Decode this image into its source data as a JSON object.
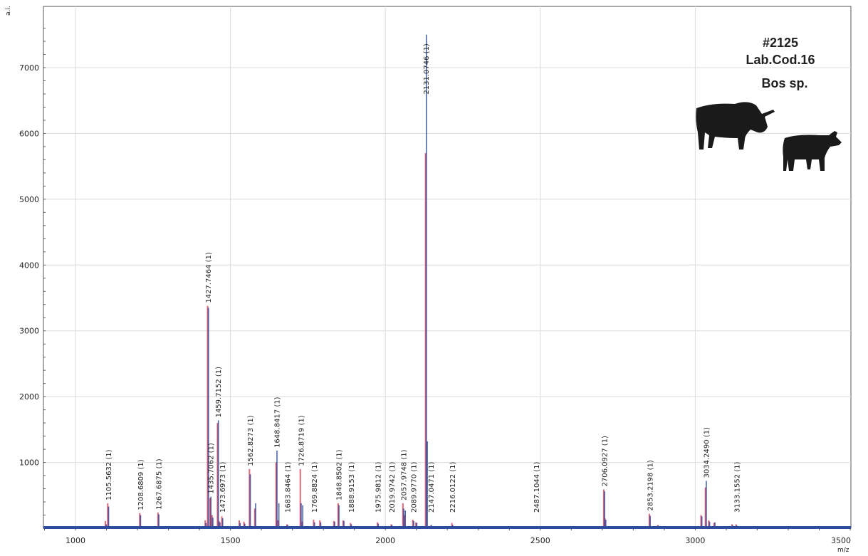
{
  "chart_data": {
    "type": "line",
    "title": "",
    "xlabel": "m/z",
    "ylabel": "a.i.",
    "xlim": [
      900,
      3500
    ],
    "ylim": [
      0,
      7800
    ],
    "x_ticks": [
      1000,
      1500,
      2000,
      2500,
      3000,
      3500
    ],
    "y_ticks": [
      1000,
      2000,
      3000,
      4000,
      5000,
      6000,
      7000
    ],
    "grid": true,
    "annotations": [
      "#2125",
      "Lab.Cod.16",
      "Bos sp."
    ],
    "icons": [
      "cow-silhouette-icon",
      "calf-silhouette-icon"
    ],
    "colors": {
      "blue": "#2b4f9a",
      "red": "#e06a78",
      "purple": "#7a3d8c"
    },
    "labeled_peaks": [
      {
        "mz": 1105.5632,
        "label": "1105.5632 (1)",
        "red": 380,
        "blue": 330
      },
      {
        "mz": 1208.6809,
        "label": "1208.6809 (1)",
        "red": 230,
        "blue": 200
      },
      {
        "mz": 1267.6875,
        "label": "1267.6875 (1)",
        "red": 240,
        "blue": 210
      },
      {
        "mz": 1427.7464,
        "label": "1427.7464 (1)",
        "red": 3380,
        "blue": 3350
      },
      {
        "mz": 1435.7062,
        "label": "1435.7062 (1)",
        "red": 460,
        "blue": 480
      },
      {
        "mz": 1459.7152,
        "label": "1459.7152 (1)",
        "red": 1600,
        "blue": 1640
      },
      {
        "mz": 1473.6973,
        "label": "1473.6973 (1)",
        "red": 180,
        "blue": 150
      },
      {
        "mz": 1562.8273,
        "label": "1562.8273 (1)",
        "red": 900,
        "blue": 820
      },
      {
        "mz": 1648.8417,
        "label": "1648.8417 (1)",
        "red": 1000,
        "blue": 1180
      },
      {
        "mz": 1683.8464,
        "label": "1683.8464 (1)",
        "red": 60,
        "blue": 50
      },
      {
        "mz": 1726.8719,
        "label": "1726.8719 (1)",
        "red": 900,
        "blue": 380
      },
      {
        "mz": 1769.8824,
        "label": "1769.8824 (1)",
        "red": 130,
        "blue": 90
      },
      {
        "mz": 1848.8502,
        "label": "1848.8502 (1)",
        "red": 380,
        "blue": 350
      },
      {
        "mz": 1888.9153,
        "label": "1888.9153 (1)",
        "red": 80,
        "blue": 60
      },
      {
        "mz": 1975.9812,
        "label": "1975.9812 (1)",
        "red": 90,
        "blue": 70
      },
      {
        "mz": 2019.9742,
        "label": "2019.9742 (1)",
        "red": 60,
        "blue": 50
      },
      {
        "mz": 2057.9748,
        "label": "2057.9748 (1)",
        "red": 380,
        "blue": 300
      },
      {
        "mz": 2089.977,
        "label": "2089.9770 (1)",
        "red": 130,
        "blue": 110
      },
      {
        "mz": 2131.0746,
        "label": "2131.0746 (1)",
        "red": 5700,
        "blue": 7500
      },
      {
        "mz": 2147.0471,
        "label": "2147.0471 (1)",
        "red": 40,
        "blue": 50
      },
      {
        "mz": 2216.0122,
        "label": "2216.0122 (1)",
        "red": 80,
        "blue": 50
      },
      {
        "mz": 2487.1044,
        "label": "2487.1044 (1)",
        "red": 30,
        "blue": 30
      },
      {
        "mz": 2706.0927,
        "label": "2706.0927 (1)",
        "red": 590,
        "blue": 560
      },
      {
        "mz": 2853.2198,
        "label": "2853.2198 (1)",
        "red": 220,
        "blue": 190
      },
      {
        "mz": 3034.249,
        "label": "3034.2490 (1)",
        "red": 620,
        "blue": 720
      },
      {
        "mz": 3133.1552,
        "label": "3133.1552 (1)",
        "red": 60,
        "blue": 40
      }
    ],
    "minor_peaks": [
      {
        "mz": 1098,
        "red": 110,
        "blue": 60
      },
      {
        "mz": 1420,
        "red": 120,
        "blue": 80
      },
      {
        "mz": 1442,
        "red": 200,
        "blue": 160
      },
      {
        "mz": 1465,
        "red": 110,
        "blue": 90
      },
      {
        "mz": 1530,
        "red": 120,
        "blue": 80
      },
      {
        "mz": 1545,
        "red": 100,
        "blue": 70
      },
      {
        "mz": 1580,
        "red": 300,
        "blue": 380
      },
      {
        "mz": 1655,
        "red": 120,
        "blue": 380
      },
      {
        "mz": 1732,
        "red": 100,
        "blue": 350
      },
      {
        "mz": 1790,
        "red": 120,
        "blue": 90
      },
      {
        "mz": 1835,
        "red": 110,
        "blue": 100
      },
      {
        "mz": 1865,
        "red": 120,
        "blue": 110
      },
      {
        "mz": 2063,
        "red": 200,
        "blue": 270
      },
      {
        "mz": 2100,
        "red": 90,
        "blue": 80
      },
      {
        "mz": 2134,
        "red": 0,
        "blue": 1320
      },
      {
        "mz": 2710,
        "red": 150,
        "blue": 130
      },
      {
        "mz": 2880,
        "red": 50,
        "blue": 40
      },
      {
        "mz": 3020,
        "red": 200,
        "blue": 180
      },
      {
        "mz": 3045,
        "red": 120,
        "blue": 100
      },
      {
        "mz": 3062,
        "red": 80,
        "blue": 90
      },
      {
        "mz": 3120,
        "red": 60,
        "blue": 40
      }
    ]
  }
}
